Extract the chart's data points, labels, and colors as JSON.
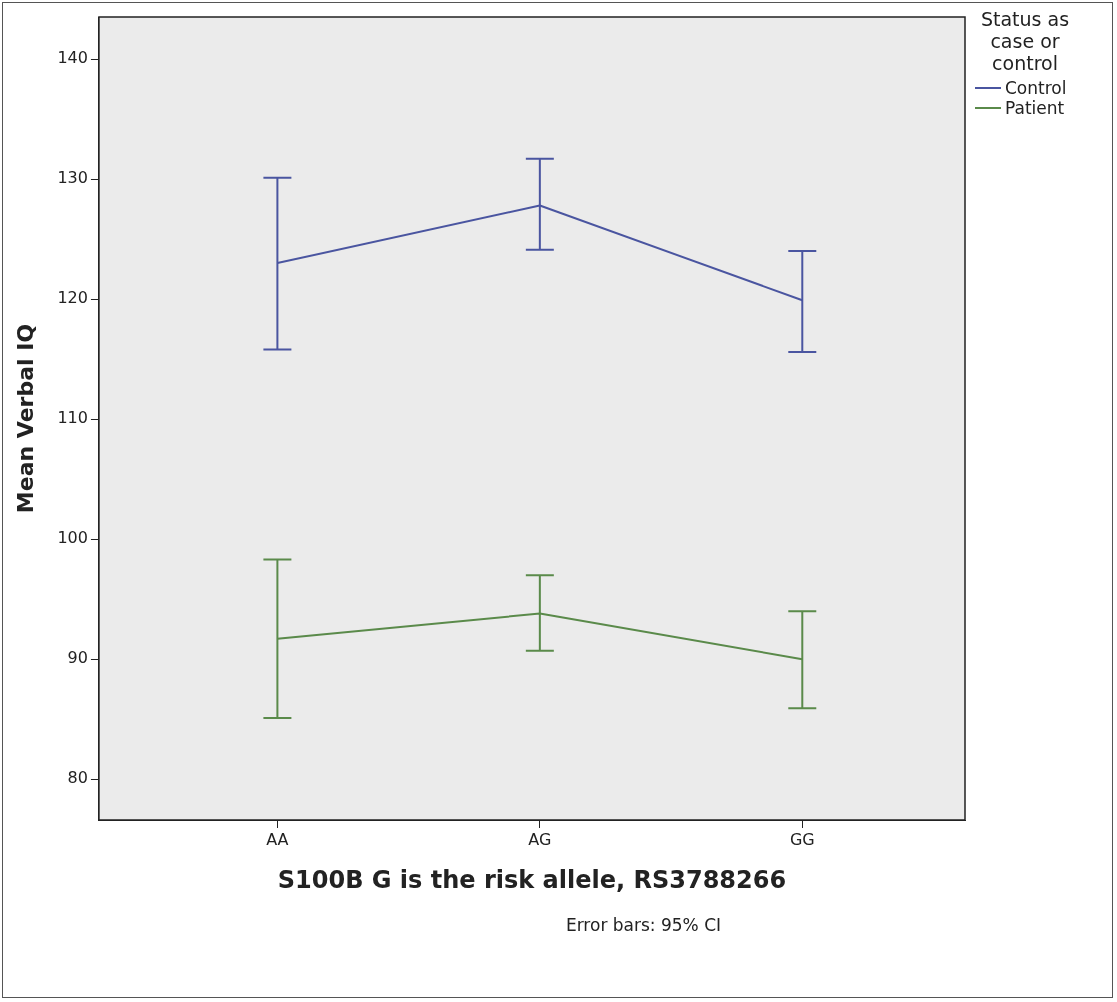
{
  "chart_data": {
    "type": "line",
    "xlabel": "S100B G is the risk allele, RS3788266",
    "ylabel": "Mean Verbal IQ",
    "legend_title": "Status as case or control",
    "categories": [
      "AA",
      "AG",
      "GG"
    ],
    "series": [
      {
        "name": "Control",
        "color": "#4a55a0",
        "values": [
          123.0,
          127.8,
          119.9
        ],
        "errors": [
          [
            115.8,
            130.1
          ],
          [
            124.1,
            131.7
          ],
          [
            115.6,
            124.0
          ]
        ]
      },
      {
        "name": "Patient",
        "color": "#5a8a4a",
        "values": [
          91.7,
          93.8,
          90.0
        ],
        "errors": [
          [
            85.1,
            98.3
          ],
          [
            90.7,
            97.0
          ],
          [
            85.9,
            94.0
          ]
        ]
      }
    ],
    "ylim": [
      76.6,
      143.5
    ],
    "yticks": [
      80,
      90,
      100,
      110,
      120,
      130,
      140
    ],
    "grid": false,
    "legend": "top right",
    "marker": "none",
    "line_style": "solid",
    "annotations": [
      "Error bars: 95% CI"
    ]
  }
}
